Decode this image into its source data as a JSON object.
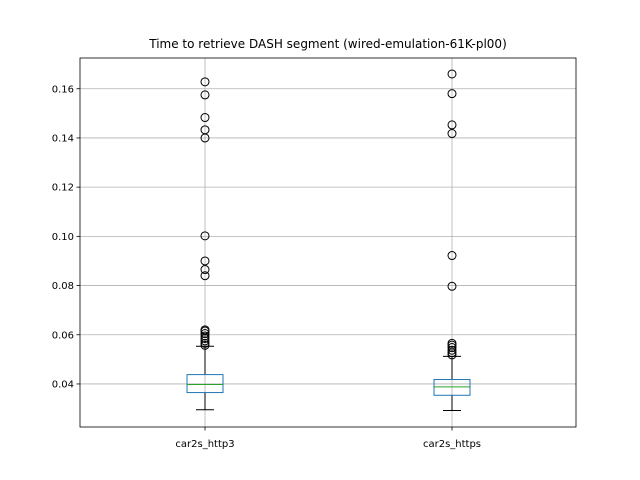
{
  "chart_data": {
    "type": "box",
    "title": "Time to retrieve DASH segment (wired-emulation-61K-pl00)",
    "xlabel": "",
    "ylabel": "",
    "ylim": [
      0.0225,
      0.1725
    ],
    "yticks": [
      0.04,
      0.06,
      0.08,
      0.1,
      0.12,
      0.14,
      0.16
    ],
    "ytick_labels": [
      "0.04",
      "0.06",
      "0.08",
      "0.10",
      "0.12",
      "0.14",
      "0.16"
    ],
    "grid": true,
    "categories": [
      "car2s_http3",
      "car2s_https"
    ],
    "series": [
      {
        "whisker_low": 0.0295,
        "q1": 0.0365,
        "median": 0.0398,
        "q3": 0.0438,
        "whisker_high": 0.0553,
        "outliers": [
          0.0557,
          0.0565,
          0.0575,
          0.0585,
          0.0595,
          0.0605,
          0.0615,
          0.062,
          0.084,
          0.0865,
          0.09,
          0.1002,
          0.14,
          0.1433,
          0.1483,
          0.1575,
          0.1628
        ]
      },
      {
        "whisker_low": 0.0292,
        "q1": 0.0354,
        "median": 0.0388,
        "q3": 0.0418,
        "whisker_high": 0.0512,
        "outliers": [
          0.0518,
          0.0527,
          0.0537,
          0.0548,
          0.0558,
          0.0565,
          0.0797,
          0.0922,
          0.1418,
          0.1453,
          0.158,
          0.166
        ]
      }
    ],
    "colors": {
      "box": "#1f77b4",
      "median": "#2ca02c",
      "whisker": "#000000",
      "outlier_edge": "#000000",
      "grid": "#b0b0b0",
      "axes": "#000000"
    }
  }
}
